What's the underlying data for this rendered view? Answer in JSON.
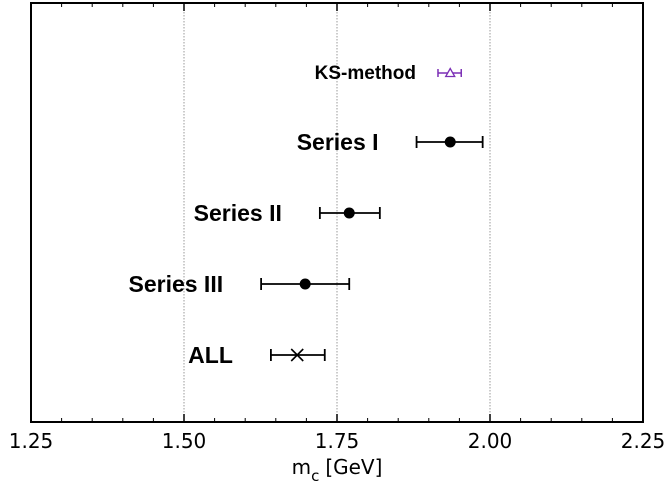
{
  "chart_data": {
    "type": "scatter",
    "orientation": "horizontal-errorbar",
    "title": "",
    "xlabel": "m",
    "xlabel_sub": "c",
    "xlabel_unit": "[GeV]",
    "ylabel": "",
    "xlim": [
      1.25,
      2.25
    ],
    "xticks": [
      {
        "value": 1.25,
        "label": "1.25"
      },
      {
        "value": 1.5,
        "label": "1.50"
      },
      {
        "value": 1.75,
        "label": "1.75"
      },
      {
        "value": 2.0,
        "label": "2.00"
      },
      {
        "value": 2.25,
        "label": "2.25"
      }
    ],
    "grid": "vertical dotted at major ticks",
    "legend": "none",
    "series": [
      {
        "label": "KS-method",
        "value": 1.935,
        "err_low": 1.915,
        "err_high": 1.953,
        "marker": "triangle-open",
        "color": "#7b2fb5",
        "small": true
      },
      {
        "label": "Series I",
        "value": 1.935,
        "err_low": 1.88,
        "err_high": 1.988,
        "marker": "circle-filled",
        "color": "#000000"
      },
      {
        "label": "Series II",
        "value": 1.77,
        "err_low": 1.722,
        "err_high": 1.82,
        "marker": "circle-filled",
        "color": "#000000"
      },
      {
        "label": "Series III",
        "value": 1.698,
        "err_low": 1.626,
        "err_high": 1.77,
        "marker": "circle-filled",
        "color": "#000000"
      },
      {
        "label": "ALL",
        "value": 1.685,
        "err_low": 1.642,
        "err_high": 1.73,
        "marker": "cross",
        "color": "#000000"
      }
    ]
  }
}
